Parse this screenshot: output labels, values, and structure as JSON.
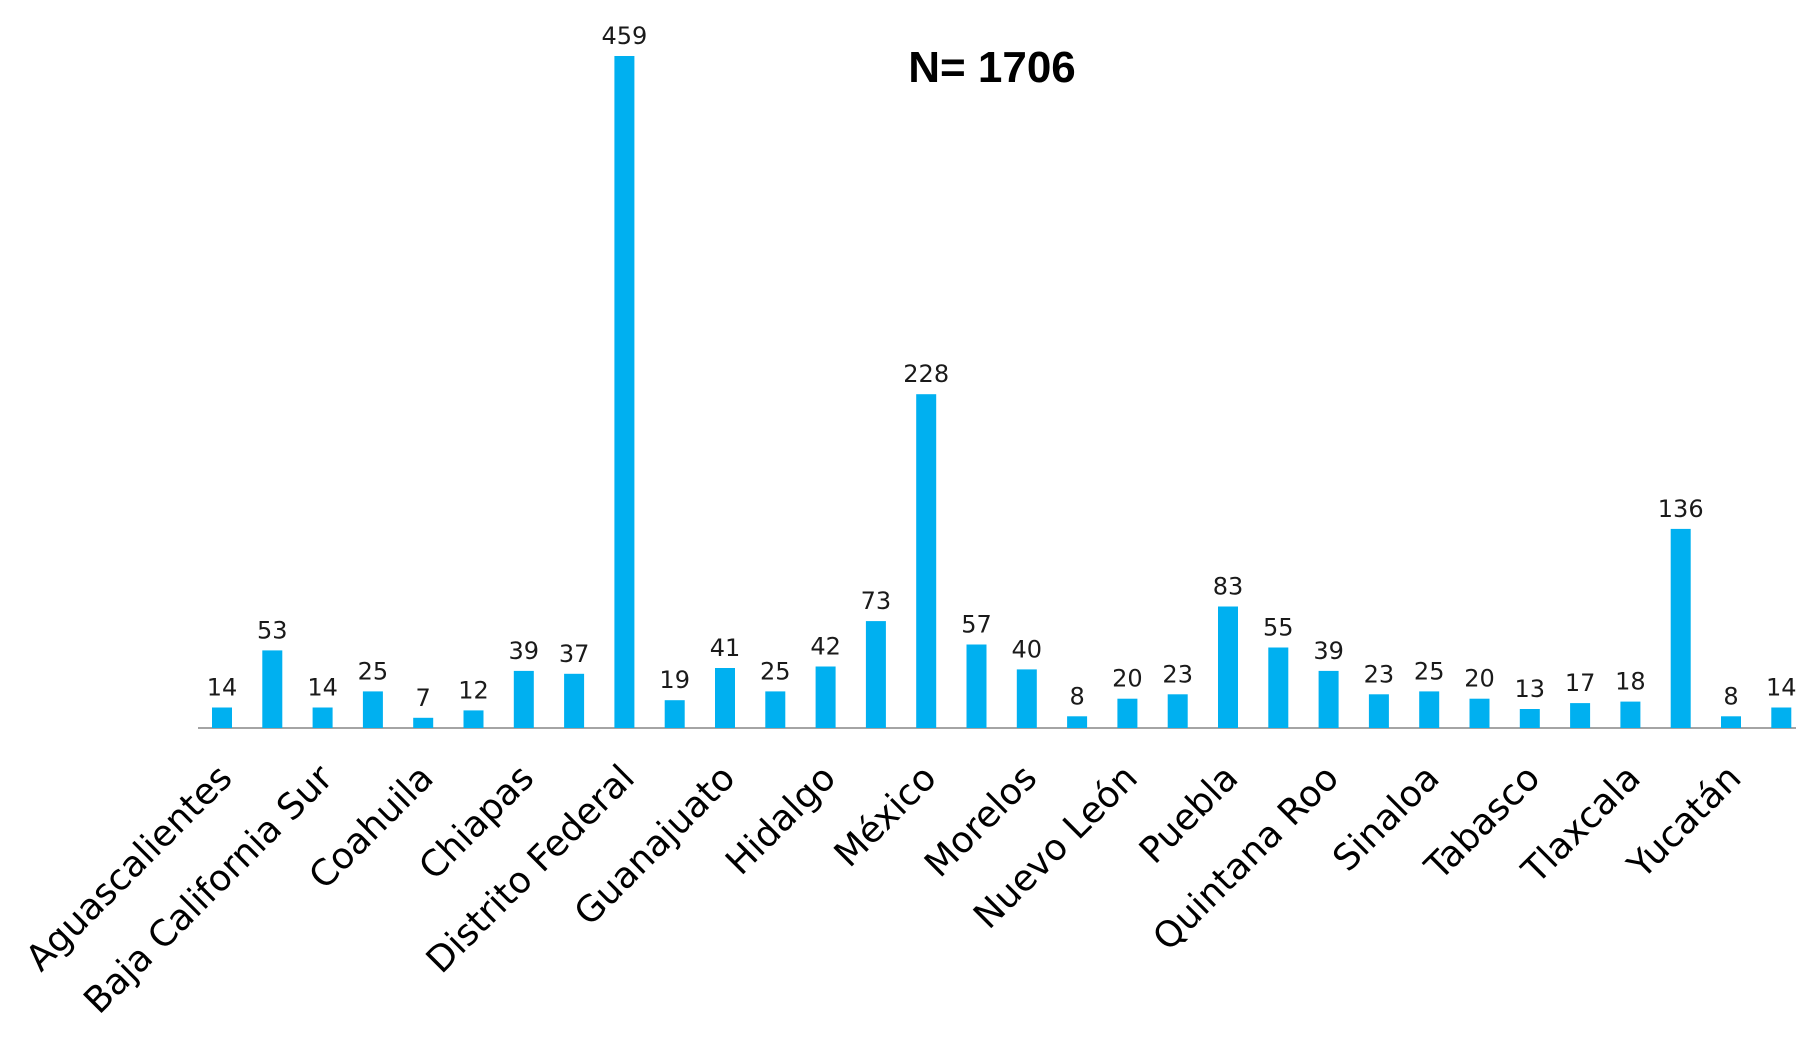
{
  "chart_data": {
    "type": "bar",
    "title": "N= 1706",
    "xlabel": "",
    "ylabel": "",
    "ylim": [
      0,
      459
    ],
    "grid": false,
    "legend": "none",
    "bar_color": "#00b0f0",
    "categories": [
      "Aguascalientes",
      "",
      "Baja California Sur",
      "",
      "Coahuila",
      "",
      "Chiapas",
      "",
      "Distrito Federal",
      "",
      "Guanajuato",
      "",
      "Hidalgo",
      "",
      "México",
      "",
      "Morelos",
      "",
      "Nuevo León",
      "",
      "Puebla",
      "",
      "Quintana Roo",
      "",
      "Sinaloa",
      "",
      "Tabasco",
      "",
      "Tlaxcala",
      "",
      "Yucatán",
      ""
    ],
    "values": [
      14,
      53,
      14,
      25,
      7,
      12,
      39,
      37,
      459,
      19,
      41,
      25,
      42,
      73,
      228,
      57,
      40,
      8,
      20,
      23,
      83,
      55,
      39,
      23,
      25,
      20,
      13,
      17,
      18,
      136,
      8,
      14
    ]
  }
}
